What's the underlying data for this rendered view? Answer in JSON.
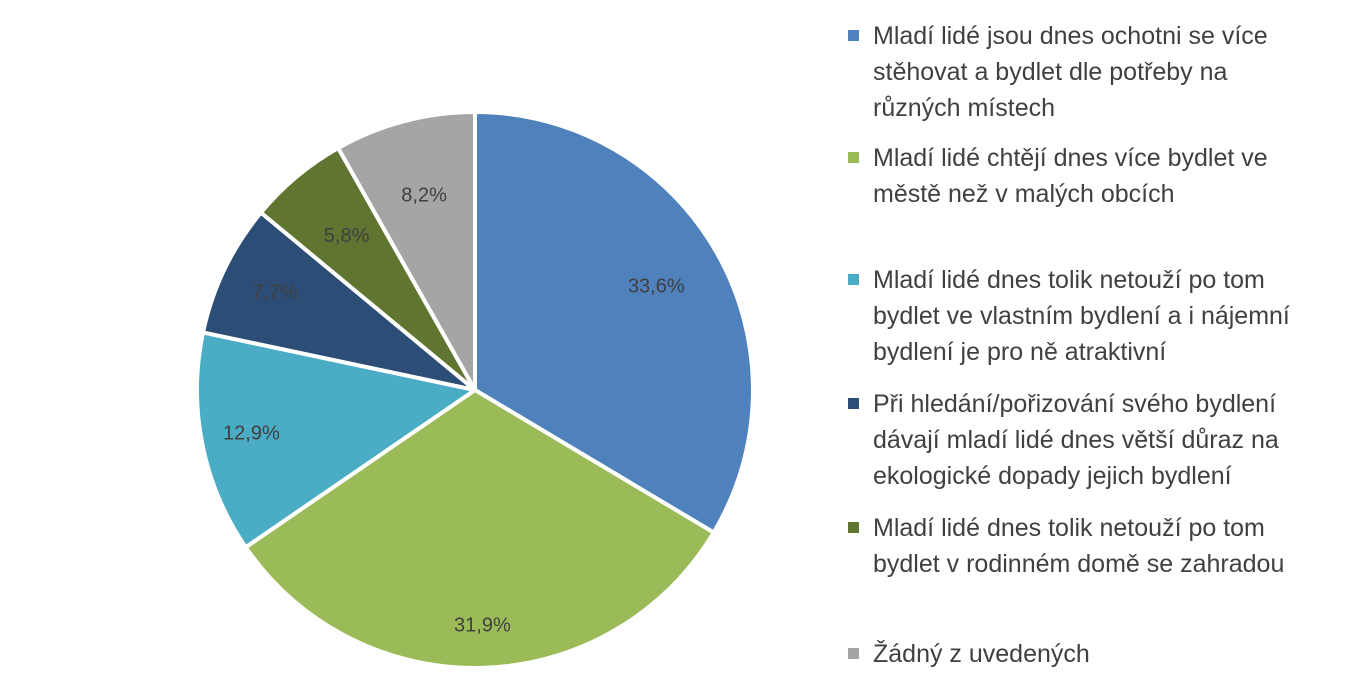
{
  "chart_data": {
    "type": "pie",
    "categories": [
      "Mladí lidé jsou dnes ochotni se více stěhovat a bydlet dle potřeby na různých místech",
      "Mladí lidé chtějí dnes více bydlet ve městě než v malých obcích",
      "Mladí lidé dnes tolik netouží po tom bydlet ve vlastním bydlení a i nájemní bydlení je pro ně atraktivní",
      "Při hledání/pořizování svého bydlení dávají mladí lidé dnes větší důraz na ekologické dopady jejich bydlení",
      "Mladí lidé dnes tolik netouží po tom bydlet v rodinném domě se zahradou",
      "Žádný z uvedených"
    ],
    "values": [
      33.6,
      31.9,
      12.9,
      7.7,
      5.8,
      8.2
    ],
    "data_labels": [
      "33,6%",
      "31,9%",
      "12,9%",
      "7,7%",
      "5,8%",
      "8,2%"
    ],
    "colors": [
      "#4F81BD",
      "#9BBB59",
      "#4BACC6",
      "#2C4D75",
      "#5F7530",
      "#A5A5A5"
    ],
    "legend_position": "right",
    "title": ""
  },
  "legend": {
    "items": [
      {
        "lines": [
          "Mladí lidé jsou dnes ochotni se více",
          "stěhovat a bydlet dle potřeby na",
          "různých místech"
        ]
      },
      {
        "lines": [
          "Mladí lidé chtějí dnes více bydlet ve",
          "městě než v malých obcích"
        ]
      },
      {
        "lines": [
          "Mladí lidé dnes tolik netouží po tom",
          "bydlet ve vlastním bydlení a i nájemní",
          "bydlení je pro ně atraktivní"
        ]
      },
      {
        "lines": [
          "Při hledání/pořizování svého bydlení",
          "dávají mladí lidé dnes větší důraz na",
          "ekologické dopady jejich bydlení"
        ]
      },
      {
        "lines": [
          "Mladí lidé dnes tolik netouží po tom",
          "bydlet v rodinném domě se zahradou"
        ]
      },
      {
        "lines": [
          "Žádný z uvedených"
        ]
      }
    ]
  }
}
